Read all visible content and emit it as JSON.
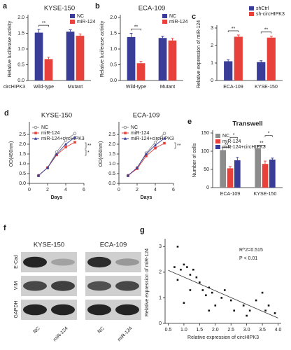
{
  "chart_data": [
    {
      "type": "bar",
      "panel": "a",
      "title": "KYSE-150",
      "ylabel": "Relative luciferase activity",
      "xaxis_label": "circHIPK3",
      "categories": [
        "Wild-type",
        "Mutant"
      ],
      "series": [
        {
          "name": "NC",
          "color": "#3a3d98",
          "values": [
            1.52,
            1.55
          ],
          "errors": [
            0.1,
            0.06
          ]
        },
        {
          "name": "miR-124",
          "color": "#e8413c",
          "values": [
            0.68,
            1.42
          ],
          "errors": [
            0.06,
            0.06
          ]
        }
      ],
      "ylim": [
        0,
        2.0
      ],
      "yticks": [
        {
          "value": 0,
          "label": "0.0"
        },
        0.5,
        {
          "value": 1,
          "label": "1.0"
        },
        1.5,
        {
          "value": 2,
          "label": "2.0"
        }
      ],
      "annotations": [
        "**"
      ],
      "legend": "top-right"
    },
    {
      "type": "bar",
      "panel": "b",
      "title": "ECA-109",
      "ylabel": "Relative luciferase activity",
      "categories": [
        "Wild-type",
        "Mutant"
      ],
      "series": [
        {
          "name": "NC",
          "color": "#3a3d98",
          "values": [
            1.38,
            1.35
          ],
          "errors": [
            0.12,
            0.05
          ]
        },
        {
          "name": "miR-124",
          "color": "#e8413c",
          "values": [
            0.55,
            1.27
          ],
          "errors": [
            0.06,
            0.07
          ]
        }
      ],
      "ylim": [
        0,
        2.0
      ],
      "yticks": [
        {
          "value": 0,
          "label": "0.0"
        },
        0.5,
        {
          "value": 1,
          "label": "1.0"
        },
        1.5,
        {
          "value": 2,
          "label": "2.0"
        }
      ],
      "annotations": [
        "**"
      ],
      "legend": "top-right"
    },
    {
      "type": "bar",
      "panel": "c",
      "ylabel": "Relative expression of miR-124",
      "categories": [
        "ECA-109",
        "KYSE-150"
      ],
      "series": [
        {
          "name": "shCtrl",
          "color": "#3a3d98",
          "values": [
            1.1,
            1.05
          ],
          "errors": [
            0.08,
            0.08
          ]
        },
        {
          "name": "sh-circHIPK3",
          "color": "#e8413c",
          "values": [
            2.5,
            2.45
          ],
          "errors": [
            0.1,
            0.08
          ]
        }
      ],
      "ylim": [
        0,
        3
      ],
      "yticks": [
        0,
        1,
        2,
        3
      ],
      "annotations": [
        "**",
        "**"
      ],
      "legend": "top-right"
    },
    {
      "type": "line",
      "panel": "d",
      "title": "KYSE-150",
      "ylabel": "OD(450nm)",
      "xlabel": "Days",
      "x": [
        1,
        2,
        3,
        4,
        5
      ],
      "series": [
        {
          "name": "NC",
          "color": "#8c8c8c",
          "values": [
            0.4,
            0.8,
            1.6,
            2.2,
            2.55
          ]
        },
        {
          "name": "miR-124",
          "color": "#e8413c",
          "values": [
            0.4,
            0.8,
            1.45,
            1.85,
            2.1
          ]
        },
        {
          "name": "miR-124+circHIPK3",
          "color": "#3a3d98",
          "values": [
            0.4,
            0.8,
            1.5,
            2.0,
            2.35
          ]
        }
      ],
      "xlim": [
        0,
        6
      ],
      "xticks": [
        0,
        2,
        4,
        6
      ],
      "ylim": [
        0,
        3
      ],
      "yticks": [
        {
          "value": 0,
          "label": "0.0"
        },
        0.5,
        {
          "value": 1,
          "label": "1.0"
        },
        1.5,
        {
          "value": 2,
          "label": "2.0"
        },
        2.5
      ],
      "annotations": [
        "**",
        "*"
      ],
      "legend": "top-left"
    },
    {
      "type": "line",
      "title": "ECA-109",
      "ylabel": "OD(450nm)",
      "xlabel": "Days",
      "x": [
        1,
        2,
        3,
        4,
        5
      ],
      "series": [
        {
          "name": "NC",
          "color": "#8c8c8c",
          "values": [
            0.4,
            0.8,
            1.55,
            2.1,
            2.55
          ]
        },
        {
          "name": "miR-124",
          "color": "#e8413c",
          "values": [
            0.4,
            0.75,
            1.4,
            1.8,
            2.05
          ]
        },
        {
          "name": "miR-124+circHIPK3",
          "color": "#3a3d98",
          "values": [
            0.4,
            0.8,
            1.5,
            1.95,
            2.3
          ]
        }
      ],
      "xlim": [
        0,
        6
      ],
      "xticks": [
        0,
        2,
        4,
        6
      ],
      "ylim": [
        0,
        3
      ],
      "yticks": [
        {
          "value": 0,
          "label": "0.0"
        },
        0.5,
        {
          "value": 1,
          "label": "1.0"
        },
        1.5,
        {
          "value": 2,
          "label": "2.0"
        },
        2.5
      ],
      "annotations": [
        "**"
      ],
      "legend": "top-left"
    },
    {
      "type": "bar",
      "panel": "e",
      "title": "Transwell",
      "ylabel": "Number of cells",
      "categories": [
        "ECA-109",
        "KYSE-150"
      ],
      "series": [
        {
          "name": "NC",
          "color": "#8c8c8c",
          "values": [
            103,
            108
          ],
          "errors": [
            8,
            8
          ]
        },
        {
          "name": "miR-124",
          "color": "#e8413c",
          "values": [
            53,
            65
          ],
          "errors": [
            5,
            8
          ]
        },
        {
          "name": "miR-124+circHIPK3",
          "color": "#3a3d98",
          "values": [
            75,
            77
          ],
          "errors": [
            8,
            4
          ]
        }
      ],
      "ylim": [
        0,
        150
      ],
      "yticks": [
        0,
        50,
        100,
        150
      ],
      "annotations": [
        "**",
        "*",
        "**",
        "*"
      ],
      "legend": "top-left"
    },
    {
      "type": "scatter",
      "panel": "g",
      "xlabel": "Relative expression of circHIPK3",
      "ylabel": "Relative expression of miR-124",
      "x": [
        0.8,
        0.7,
        0.9,
        0.8,
        1.0,
        1.1,
        1.2,
        1.3,
        1.4,
        1.5,
        1.2,
        1.0,
        1.6,
        1.7,
        1.8,
        1.9,
        2.0,
        2.2,
        2.3,
        2.5,
        2.6,
        2.9,
        3.0,
        3.1,
        3.3,
        3.5,
        3.6,
        3.7,
        3.9,
        1.8
      ],
      "values": [
        3.0,
        2.2,
        2.1,
        1.7,
        2.3,
        2.2,
        1.9,
        2.1,
        1.8,
        1.6,
        1.3,
        0.8,
        1.3,
        1.1,
        1.4,
        1.2,
        0.7,
        1.0,
        1.3,
        0.9,
        0.5,
        0.7,
        0.3,
        0.5,
        0.9,
        1.2,
        0.5,
        0.7,
        0.4,
        0.5
      ],
      "color": "#111111",
      "xlim": [
        0.4,
        4.1
      ],
      "xticks": [
        0.5,
        {
          "value": 1,
          "label": "1.0"
        },
        1.5,
        {
          "value": 2,
          "label": "2.0"
        },
        2.5,
        {
          "value": 3,
          "label": "3.0"
        },
        3.5,
        {
          "value": 4,
          "label": "4.0"
        }
      ],
      "ylim": [
        0,
        3.2
      ],
      "yticks": [
        0,
        1,
        2,
        3
      ],
      "annotations": [
        "R^2=0.515",
        "P < 0.01"
      ]
    }
  ],
  "blot": {
    "panel": "f",
    "cell_lines": [
      "KYSE-150",
      "ECA-109"
    ],
    "proteins": [
      "E-Cad",
      "VIM",
      "GAPDH"
    ],
    "lanes": [
      "NC",
      "miR-124",
      "NC",
      "miR-124"
    ]
  }
}
